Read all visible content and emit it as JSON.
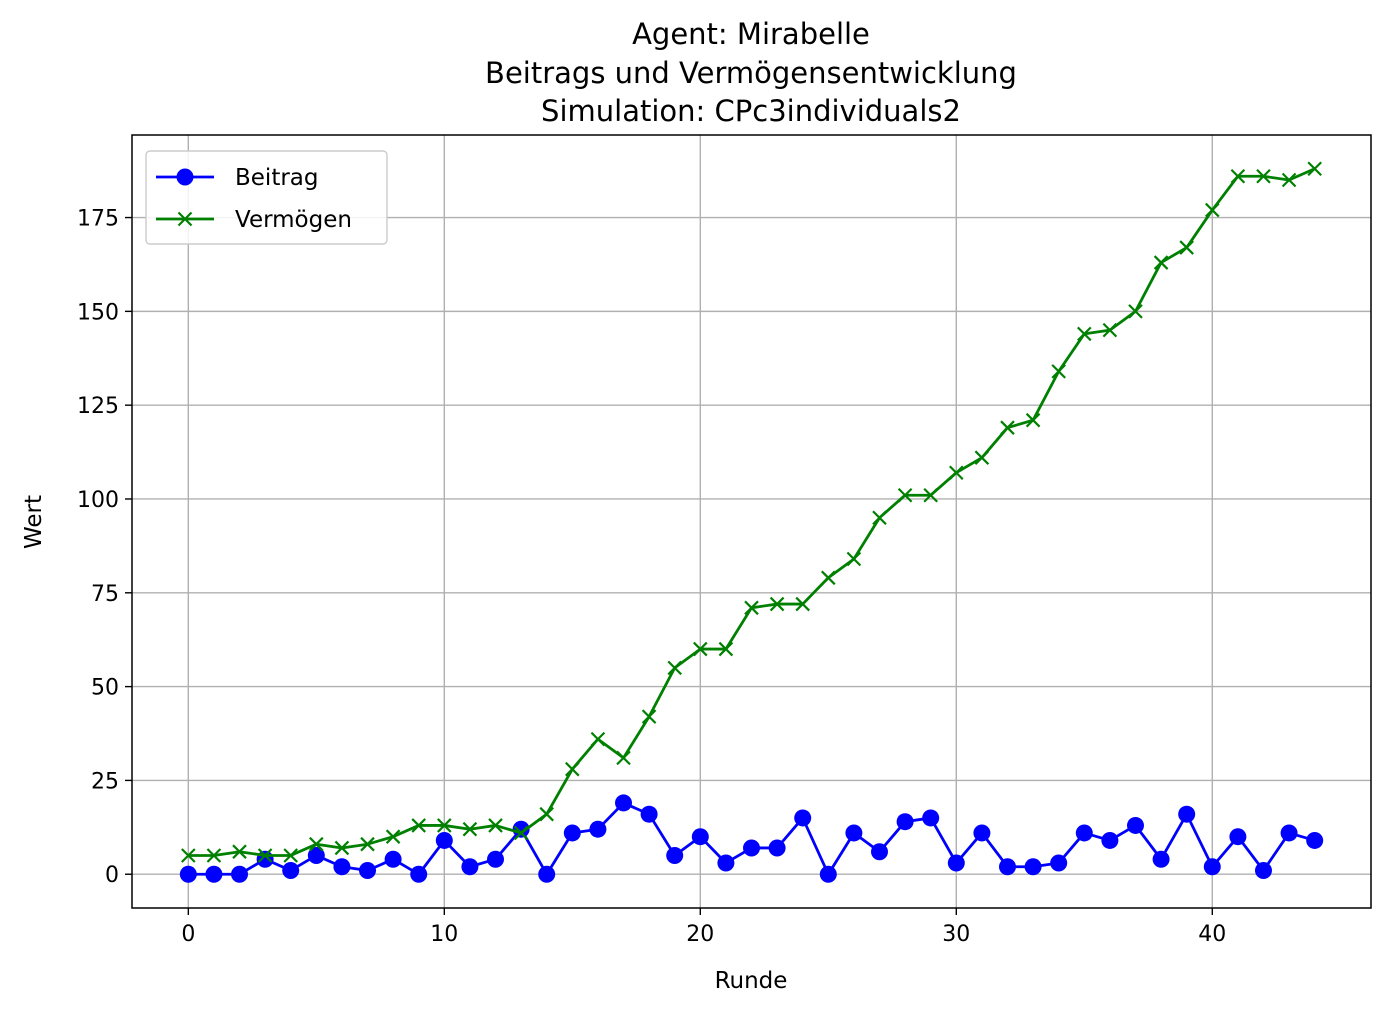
{
  "chart_data": {
    "type": "line",
    "title_lines": [
      "Agent: Mirabelle",
      "Beitrags und Vermögensentwicklung",
      "Simulation: CPc3individuals2"
    ],
    "xlabel": "Runde",
    "ylabel": "Wert",
    "xlim": [
      -2.2,
      46.2
    ],
    "ylim": [
      -9,
      197
    ],
    "xticks": [
      0,
      10,
      20,
      30,
      40
    ],
    "yticks": [
      0,
      25,
      50,
      75,
      100,
      125,
      150,
      175
    ],
    "grid": true,
    "legend_position": "upper-left",
    "x": [
      0,
      1,
      2,
      3,
      4,
      5,
      6,
      7,
      8,
      9,
      10,
      11,
      12,
      13,
      14,
      15,
      16,
      17,
      18,
      19,
      20,
      21,
      22,
      23,
      24,
      25,
      26,
      27,
      28,
      29,
      30,
      31,
      32,
      33,
      34,
      35,
      36,
      37,
      38,
      39,
      40,
      41,
      42,
      43,
      44
    ],
    "series": [
      {
        "name": "Beitrag",
        "color": "#0000ff",
        "marker": "circle",
        "values": [
          0,
          0,
          0,
          4,
          1,
          5,
          2,
          1,
          4,
          0,
          9,
          2,
          4,
          12,
          0,
          11,
          12,
          19,
          16,
          5,
          10,
          3,
          7,
          7,
          15,
          0,
          11,
          6,
          14,
          15,
          3,
          11,
          2,
          2,
          3,
          11,
          9,
          13,
          4,
          16,
          2,
          10,
          1,
          11,
          9
        ]
      },
      {
        "name": "Vermögen",
        "color": "#008000",
        "marker": "x",
        "values": [
          5,
          5,
          6,
          5,
          5,
          8,
          7,
          8,
          10,
          13,
          13,
          12,
          13,
          11,
          16,
          28,
          36,
          31,
          42,
          55,
          60,
          60,
          71,
          72,
          72,
          79,
          84,
          95,
          101,
          101,
          107,
          111,
          119,
          121,
          134,
          144,
          145,
          150,
          163,
          167,
          177,
          186,
          186,
          185,
          188
        ]
      }
    ]
  }
}
